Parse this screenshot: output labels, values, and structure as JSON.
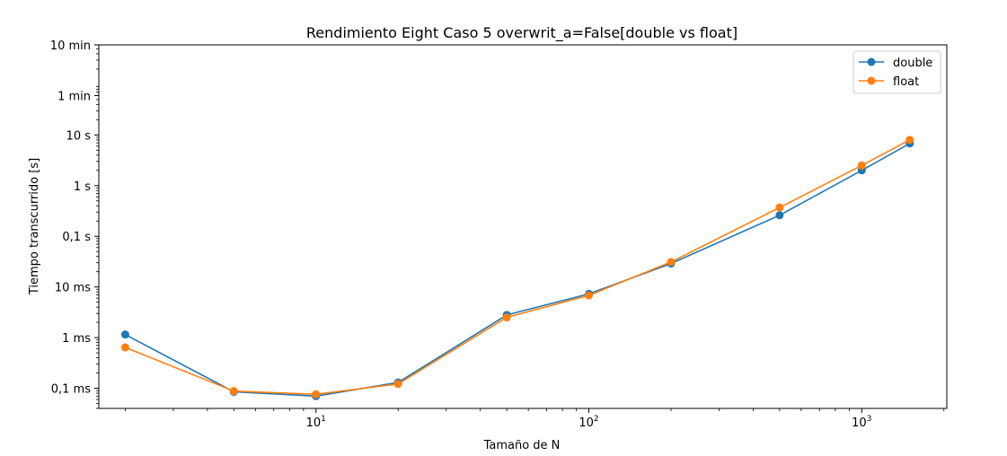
{
  "chart_data": {
    "type": "line",
    "title": "Rendimiento Eight Caso 5 overwrit_a=False[double vs float]",
    "xlabel": "Tamaño de N",
    "ylabel": "Tiempo transcurrido [s]",
    "x_scale": "log",
    "y_scale": "log",
    "xlim": [
      1.6,
      2050
    ],
    "ylim": [
      4e-05,
      600
    ],
    "x_ticks": [
      {
        "value": 10,
        "base": "10",
        "exp": "1"
      },
      {
        "value": 100,
        "base": "10",
        "exp": "2"
      },
      {
        "value": 1000,
        "base": "10",
        "exp": "3"
      }
    ],
    "y_ticks": [
      {
        "value": 0.0001,
        "label": "0,1 ms"
      },
      {
        "value": 0.001,
        "label": "1 ms"
      },
      {
        "value": 0.01,
        "label": "10 ms"
      },
      {
        "value": 0.1,
        "label": "0,1 s"
      },
      {
        "value": 1,
        "label": "1 s"
      },
      {
        "value": 10,
        "label": "10 s"
      },
      {
        "value": 60,
        "label": "1 min"
      },
      {
        "value": 600,
        "label": "10 min"
      }
    ],
    "grid": false,
    "legend_position": "top-right",
    "x": [
      2,
      5,
      10,
      20,
      50,
      100,
      200,
      500,
      1000,
      1500
    ],
    "series": [
      {
        "name": "double",
        "color": "#1f77b4",
        "values": [
          0.00115,
          8.5e-05,
          7e-05,
          0.00013,
          0.0028,
          0.0073,
          0.029,
          0.26,
          2.0,
          6.8
        ]
      },
      {
        "name": "float",
        "color": "#ff7f0e",
        "values": [
          0.00064,
          8.8e-05,
          7.6e-05,
          0.000122,
          0.0025,
          0.0068,
          0.031,
          0.37,
          2.5,
          8.0
        ]
      }
    ]
  }
}
